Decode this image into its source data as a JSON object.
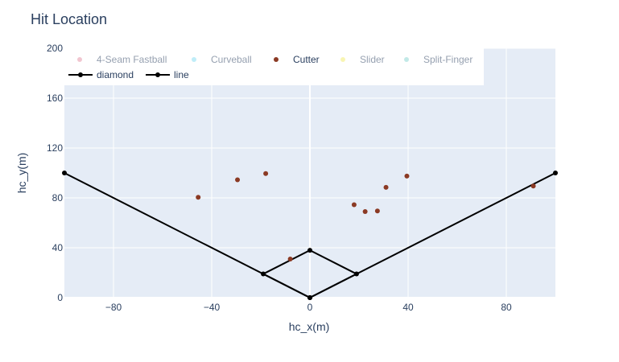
{
  "chart_data": {
    "type": "scatter",
    "title": "Hit Location",
    "xlabel": "hc_x(m)",
    "ylabel": "hc_y(m)",
    "xlim": [
      -100,
      100
    ],
    "ylim": [
      0,
      200
    ],
    "xticks": [
      -80,
      -40,
      0,
      40,
      80
    ],
    "yticks": [
      0,
      40,
      80,
      120,
      160,
      200
    ],
    "xtick_labels": [
      "−80",
      "−40",
      "0",
      "40",
      "80"
    ],
    "ytick_labels": [
      "0",
      "40",
      "80",
      "120",
      "160",
      "200"
    ],
    "grid": true,
    "legend_position": "top-left",
    "series": [
      {
        "name": "4-Seam Fastball",
        "type": "markers",
        "color": "#e48fa2",
        "hidden": true,
        "points": []
      },
      {
        "name": "Curveball",
        "type": "markers",
        "color": "#7fdcf2",
        "hidden": true,
        "points": []
      },
      {
        "name": "Cutter",
        "type": "markers",
        "color": "#8b3a24",
        "hidden": false,
        "points": [
          [
            -45.5,
            80.5
          ],
          [
            -29.5,
            94.5
          ],
          [
            -18,
            99.5
          ],
          [
            -8,
            31
          ],
          [
            18,
            74.5
          ],
          [
            22.5,
            69
          ],
          [
            27.5,
            69.5
          ],
          [
            31,
            88.5
          ],
          [
            39.5,
            97.5
          ],
          [
            91,
            89.5
          ]
        ]
      },
      {
        "name": "Slider",
        "type": "markers",
        "color": "#f2ec6a",
        "hidden": true,
        "points": []
      },
      {
        "name": "Split-Finger",
        "type": "markers",
        "color": "#86d3cf",
        "hidden": true,
        "points": []
      },
      {
        "name": "diamond",
        "type": "lines+markers",
        "color": "#000000",
        "hidden": false,
        "points": [
          [
            0,
            0
          ],
          [
            19,
            19
          ],
          [
            0,
            38
          ],
          [
            -19,
            19
          ],
          [
            0,
            0
          ]
        ]
      },
      {
        "name": "line",
        "type": "lines+markers",
        "color": "#000000",
        "hidden": false,
        "points": [
          [
            -100,
            100
          ],
          [
            0,
            0
          ],
          [
            100,
            100
          ]
        ]
      }
    ]
  }
}
